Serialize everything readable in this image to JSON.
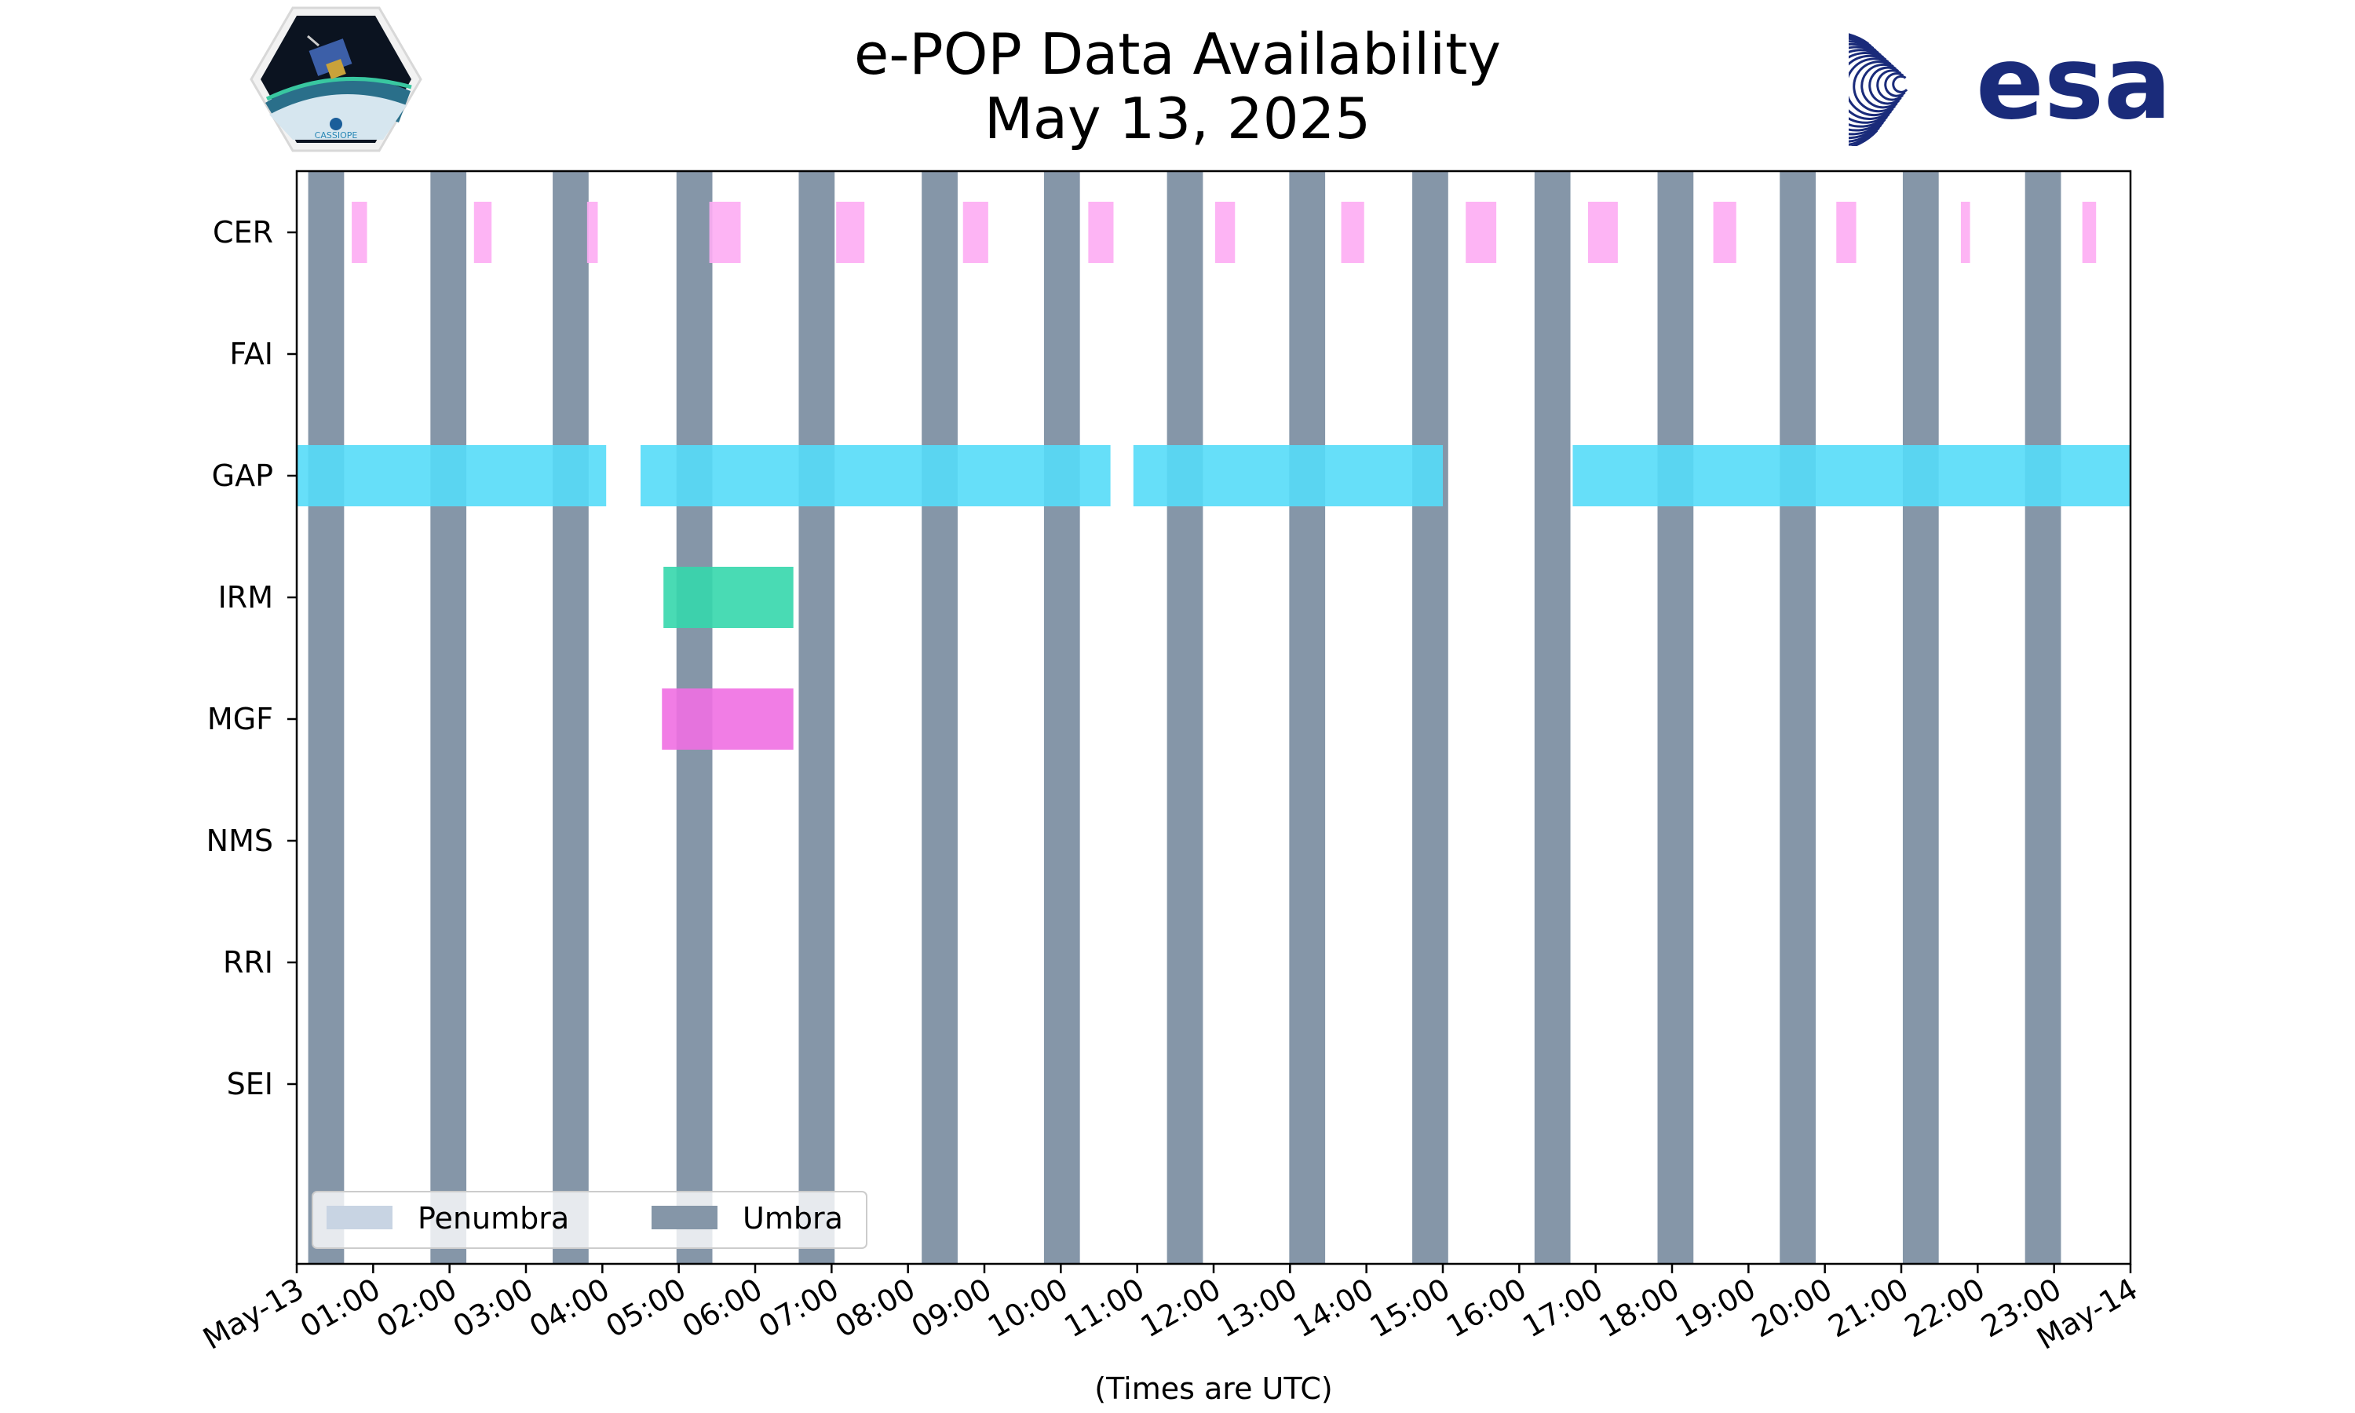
{
  "header": {
    "title_line1": "e-POP Data Availability",
    "title_line2": "May 13, 2025",
    "left_logo_text": "CASSIOPE",
    "right_logo_text": "esa"
  },
  "colors": {
    "umbra": "#8596a8",
    "penumbra": "#c8d4e3",
    "CER": "#fdacf3",
    "GAP": "#55dcf8",
    "IRM": "#35d7ac",
    "MGF": "#f06fe2",
    "esa_blue": "#1a2b7a"
  },
  "chart_data": {
    "type": "timeline",
    "title": "e-POP Data Availability May 13, 2025",
    "xlabel": "(Times are UTC)",
    "xlim": [
      0,
      24
    ],
    "x_unit": "hours UTC",
    "tick_values": [
      0,
      1,
      2,
      3,
      4,
      5,
      6,
      7,
      8,
      9,
      10,
      11,
      12,
      13,
      14,
      15,
      16,
      17,
      18,
      19,
      20,
      21,
      22,
      23,
      24
    ],
    "tick_labels": [
      "May-13",
      "01:00",
      "02:00",
      "03:00",
      "04:00",
      "05:00",
      "06:00",
      "07:00",
      "08:00",
      "09:00",
      "10:00",
      "11:00",
      "12:00",
      "13:00",
      "14:00",
      "15:00",
      "16:00",
      "17:00",
      "18:00",
      "19:00",
      "20:00",
      "21:00",
      "22:00",
      "23:00",
      "May-14"
    ],
    "instruments": [
      "CER",
      "FAI",
      "GAP",
      "IRM",
      "MGF",
      "NMS",
      "RRI",
      "SEI"
    ],
    "umbra": [
      [
        0.15,
        0.62
      ],
      [
        1.75,
        2.22
      ],
      [
        3.35,
        3.82
      ],
      [
        4.97,
        5.44
      ],
      [
        6.57,
        7.04
      ],
      [
        8.18,
        8.65
      ],
      [
        9.78,
        10.25
      ],
      [
        11.39,
        11.86
      ],
      [
        12.99,
        13.46
      ],
      [
        14.6,
        15.07
      ],
      [
        16.2,
        16.67
      ],
      [
        17.81,
        18.28
      ],
      [
        19.41,
        19.88
      ],
      [
        21.02,
        21.49
      ],
      [
        22.62,
        23.09
      ]
    ],
    "penumbra": [],
    "series": [
      {
        "name": "CER",
        "intervals": [
          [
            0.72,
            0.92
          ],
          [
            2.32,
            2.55
          ],
          [
            3.8,
            3.94
          ],
          [
            5.4,
            5.81
          ],
          [
            7.06,
            7.43
          ],
          [
            8.72,
            9.05
          ],
          [
            10.36,
            10.69
          ],
          [
            12.02,
            12.28
          ],
          [
            13.67,
            13.97
          ],
          [
            15.3,
            15.7
          ],
          [
            16.9,
            17.29
          ],
          [
            18.54,
            18.84
          ],
          [
            20.15,
            20.41
          ],
          [
            21.78,
            21.9
          ],
          [
            23.37,
            23.55
          ]
        ]
      },
      {
        "name": "FAI",
        "intervals": []
      },
      {
        "name": "GAP",
        "intervals": [
          [
            0.0,
            4.05
          ],
          [
            4.5,
            10.65
          ],
          [
            10.95,
            15.0
          ],
          [
            16.7,
            24.0
          ]
        ]
      },
      {
        "name": "IRM",
        "intervals": [
          [
            4.8,
            6.5
          ]
        ]
      },
      {
        "name": "MGF",
        "intervals": [
          [
            4.78,
            6.5
          ]
        ]
      },
      {
        "name": "NMS",
        "intervals": []
      },
      {
        "name": "RRI",
        "intervals": []
      },
      {
        "name": "SEI",
        "intervals": []
      }
    ],
    "legend": {
      "location": "lower-left",
      "entries": [
        "Penumbra",
        "Umbra"
      ]
    }
  }
}
